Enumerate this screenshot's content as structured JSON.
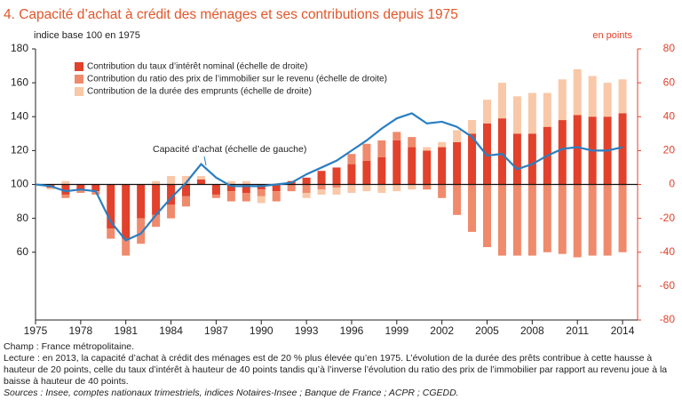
{
  "chart_data": {
    "type": "combo",
    "title": "4. Capacité d’achat à crédit des ménages et ses contributions depuis 1975",
    "ylabel": "indice base 100 en 1975",
    "y2label": "en points",
    "x": [
      1975,
      1976,
      1977,
      1978,
      1979,
      1980,
      1981,
      1982,
      1983,
      1984,
      1985,
      1986,
      1987,
      1988,
      1989,
      1990,
      1991,
      1992,
      1993,
      1994,
      1995,
      1996,
      1997,
      1998,
      1999,
      2000,
      2001,
      2002,
      2003,
      2004,
      2005,
      2006,
      2007,
      2008,
      2009,
      2010,
      2011,
      2012,
      2013,
      2014
    ],
    "xlim": [
      1975,
      2015
    ],
    "xticks": [
      1975,
      1978,
      1981,
      1984,
      1987,
      1990,
      1993,
      1996,
      1999,
      2002,
      2005,
      2008,
      2011,
      2014
    ],
    "ylim": [
      20,
      180
    ],
    "yticks": [
      60,
      80,
      100,
      120,
      140,
      160,
      180
    ],
    "y2lim": [
      -80,
      80
    ],
    "y2ticks": [
      -80,
      -60,
      -40,
      -20,
      0,
      20,
      40,
      60,
      80
    ],
    "series": [
      {
        "name": "Contribution du taux d’intérêt nominal (échelle de droite)",
        "type": "bar",
        "axis": "y2",
        "color": "#e2412b",
        "values": [
          0,
          -2,
          -6,
          -3,
          -4,
          -26,
          -32,
          -20,
          -18,
          -12,
          -7,
          3,
          -6,
          -4,
          -5,
          -3,
          -4,
          2,
          4,
          8,
          10,
          12,
          14,
          16,
          26,
          22,
          20,
          22,
          25,
          30,
          36,
          39,
          30,
          30,
          34,
          38,
          41,
          40,
          40,
          42
        ]
      },
      {
        "name": "Contribution du ratio des prix de l’immobilier sur le revenu (échelle de droite)",
        "type": "bar",
        "axis": "y2",
        "color": "#f08a6c",
        "values": [
          0,
          0,
          -2,
          -2,
          -2,
          -6,
          -10,
          -15,
          -7,
          -8,
          -6,
          0,
          -2,
          -6,
          -5,
          -4,
          -6,
          -4,
          -5,
          -3,
          -2,
          6,
          10,
          10,
          5,
          6,
          -3,
          -8,
          -18,
          -28,
          -37,
          -42,
          -42,
          -42,
          -40,
          -41,
          -43,
          -42,
          -42,
          -40
        ]
      },
      {
        "name": "Contribution de la durée des emprunts (échelle de droite)",
        "type": "bar",
        "axis": "y2",
        "color": "#f9c8a8",
        "values": [
          0,
          -1,
          2,
          0,
          0,
          0,
          0,
          0,
          2,
          5,
          5,
          2,
          0,
          2,
          2,
          -4,
          0,
          0,
          -3,
          -3,
          -4,
          -5,
          -4,
          -5,
          -4,
          -3,
          2,
          3,
          7,
          8,
          14,
          21,
          22,
          24,
          20,
          24,
          27,
          24,
          20,
          20
        ]
      },
      {
        "name": "Capacité d’achat (échelle de gauche)",
        "type": "line",
        "color": "#2a7fc1",
        "values": [
          100,
          99,
          96,
          97,
          96,
          78,
          67,
          71,
          82,
          92,
          101,
          112,
          104,
          99,
          99,
          99,
          100,
          101,
          106,
          110,
          114,
          120,
          126,
          133,
          139,
          142,
          136,
          137,
          134,
          128,
          117,
          118,
          109,
          112,
          117,
          121,
          122,
          120,
          120,
          122
        ]
      }
    ]
  },
  "notes": {
    "champ": "Champ : France métropolitaine.",
    "lecture": "Lecture : en 2013, la capacité d’achat à crédit des ménages est de 20 % plus élevée qu’en 1975. L’évolution de la durée des prêts contribue à cette hausse à hauteur de 20 points, celle du taux d’intérêt à hauteur de 40 points tandis qu’à l’inverse l’évolution du ratio des prix de l’immobilier par rapport au revenu joue à la baisse à hauteur de 40 points.",
    "sources": "Sources : Insee, comptes nationaux trimestriels, indices Notaires-Insee ; Banque de France ; ACPR ; CGEDD."
  }
}
